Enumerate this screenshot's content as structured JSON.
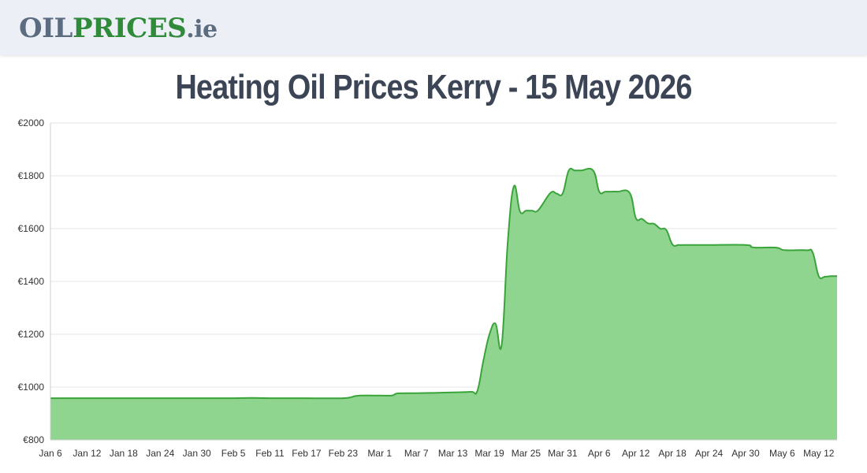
{
  "header": {
    "logo_part1": "OIL",
    "logo_part2": "PRICES",
    "logo_part3": ".ie"
  },
  "colors": {
    "header_bg": "#eceff5",
    "logo_grey": "#5b6b80",
    "logo_green": "#2f8a3a",
    "area_fill": "#8fd48f",
    "line": "#3aa43a",
    "grid": "#e6e6e6"
  },
  "chart_data": {
    "type": "area",
    "title": "Heating Oil Prices Kerry - 15 May 2026",
    "xlabel": "",
    "ylabel": "",
    "ylim": [
      800,
      2000
    ],
    "y_ticks": [
      "€800",
      "€1000",
      "€1200",
      "€1400",
      "€1600",
      "€1800",
      "€2000"
    ],
    "y_tick_values": [
      800,
      1000,
      1200,
      1400,
      1600,
      1800,
      2000
    ],
    "x_ticks": [
      "Jan 6",
      "Jan 12",
      "Jan 18",
      "Jan 24",
      "Jan 30",
      "Feb 5",
      "Feb 11",
      "Feb 17",
      "Feb 23",
      "Mar 1",
      "Mar 7",
      "Mar 13",
      "Mar 19",
      "Mar 25",
      "Mar 31",
      "Apr 6",
      "Apr 12",
      "Apr 18",
      "Apr 24",
      "Apr 30",
      "May 6",
      "May 12"
    ],
    "x": [
      "2026-01-06",
      "2026-01-12",
      "2026-01-18",
      "2026-01-24",
      "2026-01-30",
      "2026-02-05",
      "2026-02-08",
      "2026-02-11",
      "2026-02-17",
      "2026-02-23",
      "2026-02-25",
      "2026-02-26",
      "2026-03-01",
      "2026-03-03",
      "2026-03-04",
      "2026-03-07",
      "2026-03-10",
      "2026-03-13",
      "2026-03-16",
      "2026-03-17",
      "2026-03-18",
      "2026-03-19",
      "2026-03-20",
      "2026-03-21",
      "2026-03-22",
      "2026-03-23",
      "2026-03-24",
      "2026-03-25",
      "2026-03-26",
      "2026-03-27",
      "2026-03-29",
      "2026-03-30",
      "2026-03-31",
      "2026-04-01",
      "2026-04-02",
      "2026-04-03",
      "2026-04-05",
      "2026-04-06",
      "2026-04-07",
      "2026-04-08",
      "2026-04-09",
      "2026-04-11",
      "2026-04-12",
      "2026-04-13",
      "2026-04-14",
      "2026-04-15",
      "2026-04-16",
      "2026-04-17",
      "2026-04-18",
      "2026-04-19",
      "2026-04-20",
      "2026-04-21",
      "2026-04-24",
      "2026-04-30",
      "2026-05-01",
      "2026-05-02",
      "2026-05-05",
      "2026-05-06",
      "2026-05-07",
      "2026-05-10",
      "2026-05-11",
      "2026-05-12",
      "2026-05-13",
      "2026-05-14",
      "2026-05-15"
    ],
    "values": [
      958,
      958,
      958,
      958,
      958,
      958,
      959,
      958,
      958,
      958,
      966,
      968,
      968,
      968,
      976,
      977,
      978,
      980,
      982,
      985,
      1100,
      1200,
      1240,
      1160,
      1550,
      1760,
      1665,
      1668,
      1668,
      1670,
      1735,
      1733,
      1733,
      1820,
      1820,
      1820,
      1820,
      1740,
      1740,
      1740,
      1740,
      1735,
      1640,
      1637,
      1620,
      1618,
      1600,
      1595,
      1540,
      1538,
      1538,
      1538,
      1538,
      1538,
      1530,
      1528,
      1528,
      1520,
      1518,
      1518,
      1510,
      1420,
      1418,
      1420,
      1420
    ],
    "grid": true,
    "legend": "none"
  }
}
